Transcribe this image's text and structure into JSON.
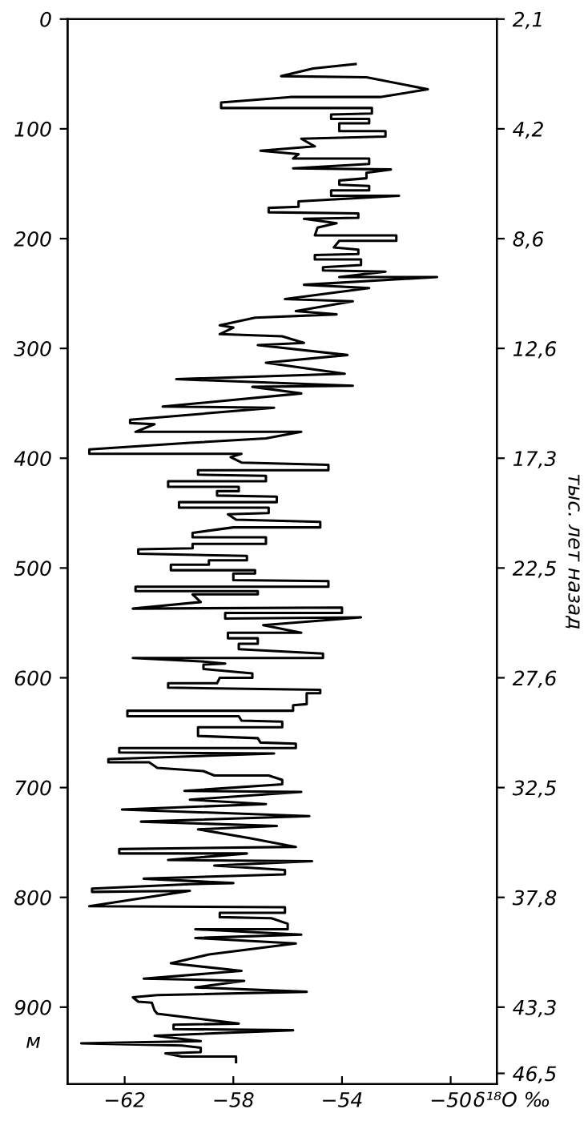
{
  "chart_data": {
    "type": "line",
    "xlabel": "δ¹⁸O ‰",
    "ylabel": "м",
    "y2label": "тыс. лет назад",
    "xlim": [
      -64.1,
      -48.3
    ],
    "xticks": [
      -62,
      -58,
      -54,
      -50
    ],
    "ylim": [
      970,
      0
    ],
    "yticks": [
      0,
      100,
      200,
      300,
      400,
      500,
      600,
      700,
      800,
      900
    ],
    "annotations": [
      "2,1",
      "4,2",
      "8,6",
      "12,6",
      "17,3",
      "22,5",
      "27,6",
      "32,5",
      "37,8",
      "43,3",
      "46,5"
    ],
    "series": [
      {
        "color": "#000000",
        "x": [
          -53.5,
          -55.06,
          -56.24,
          -53.1,
          -50.84,
          -52.6,
          -55.9,
          -58.45,
          -58.45,
          -52.9,
          -52.9,
          -54.4,
          -54.4,
          -53.0,
          -53.0,
          -54.1,
          -54.1,
          -52.4,
          -52.4,
          -55.5,
          -55.0,
          -57.0,
          -55.6,
          -55.8,
          -53.0,
          -53.0,
          -55.8,
          -52.2,
          -53.1,
          -53.1,
          -54.1,
          -54.1,
          -53.0,
          -53.0,
          -54.4,
          -54.4,
          -51.9,
          -55.6,
          -55.6,
          -56.7,
          -56.7,
          -53.4,
          -53.4,
          -55.4,
          -54.2,
          -54.9,
          -55.0,
          -52.0,
          -52.0,
          -54.1,
          -54.3,
          -53.4,
          -53.4,
          -55.0,
          -55.0,
          -53.3,
          -53.3,
          -54.7,
          -54.7,
          -52.4,
          -54.1,
          -50.5,
          -55.4,
          -53.0,
          -56.1,
          -53.6,
          -55.7,
          -54.2,
          -57.2,
          -58.5,
          -58.0,
          -58.5,
          -56.2,
          -55.4,
          -57.1,
          -53.8,
          -56.8,
          -53.9,
          -60.1,
          -53.6,
          -57.3,
          -55.5,
          -60.6,
          -56.5,
          -61.8,
          -61.8,
          -60.9,
          -61.6,
          -55.5,
          -56.8,
          -59.6,
          -63.3,
          -63.3,
          -57.7,
          -58.1,
          -57.7,
          -54.5,
          -54.5,
          -59.3,
          -59.3,
          -56.8,
          -56.8,
          -60.4,
          -60.4,
          -57.8,
          -57.8,
          -58.6,
          -58.6,
          -56.4,
          -56.4,
          -60.0,
          -60.0,
          -56.7,
          -56.7,
          -58.2,
          -57.9,
          -54.8,
          -54.8,
          -58.0,
          -59.5,
          -59.5,
          -56.8,
          -56.8,
          -59.5,
          -59.5,
          -61.5,
          -61.5,
          -57.5,
          -57.5,
          -58.9,
          -58.9,
          -60.3,
          -60.3,
          -57.2,
          -57.2,
          -58.0,
          -58.0,
          -54.5,
          -54.5,
          -61.6,
          -61.6,
          -57.1,
          -57.1,
          -59.5,
          -59.2,
          -61.7,
          -54.0,
          -54.0,
          -58.3,
          -58.3,
          -53.3,
          -56.9,
          -55.5,
          -58.2,
          -58.2,
          -57.1,
          -57.1,
          -57.8,
          -57.8,
          -54.7,
          -54.7,
          -61.7,
          -59.2,
          -58.3,
          -59.1,
          -59.1,
          -57.3,
          -57.3,
          -58.5,
          -58.6,
          -60.4,
          -60.4,
          -54.8,
          -54.8,
          -55.3,
          -55.3,
          -55.8,
          -55.8,
          -61.9,
          -61.9,
          -57.8,
          -57.7,
          -56.2,
          -56.2,
          -59.3,
          -59.3,
          -57.1,
          -57.0,
          -55.7,
          -55.7,
          -62.2,
          -62.2,
          -56.5,
          -62.6,
          -62.6,
          -61.1,
          -60.8,
          -59.1,
          -58.7,
          -56.7,
          -56.2,
          -56.2,
          -59.8,
          -55.5,
          -59.6,
          -56.8,
          -62.1,
          -55.2,
          -61.4,
          -56.4,
          -59.3,
          -57.4,
          -55.7,
          -62.2,
          -62.2,
          -57.5,
          -60.4,
          -55.1,
          -58.7,
          -56.1,
          -56.1,
          -61.3,
          -58.0,
          -59.6,
          -63.2,
          -63.2,
          -59.6,
          -63.3,
          -56.1,
          -56.1,
          -58.5,
          -58.5,
          -56.6,
          -56.0,
          -56.0,
          -59.4,
          -55.5,
          -59.4,
          -55.7,
          -58.9,
          -60.3,
          -57.7,
          -61.3,
          -57.6,
          -59.4,
          -55.3,
          -60.8,
          -61.7,
          -61.5,
          -61.0,
          -60.9,
          -60.8,
          -57.8,
          -60.2,
          -60.2,
          -55.8,
          -60.9,
          -59.2,
          -63.6,
          -59.9,
          -59.2,
          -59.2,
          -60.5,
          -59.9,
          -57.9,
          -57.9
        ],
        "values": [
          41,
          45,
          52,
          53,
          64,
          71,
          71,
          76,
          81,
          81,
          86,
          87,
          91,
          91,
          95,
          95,
          102,
          102,
          107,
          109,
          116,
          120,
          123,
          127,
          127,
          132,
          136,
          137,
          140,
          145,
          147,
          151,
          152,
          156,
          156,
          161,
          161,
          166,
          171,
          172,
          176,
          177,
          181,
          182,
          186,
          190,
          197,
          197,
          202,
          202,
          208,
          210,
          214,
          215,
          219,
          219,
          224,
          226,
          229,
          230,
          235,
          235,
          242,
          245,
          255,
          257,
          266,
          269,
          272,
          279,
          281,
          287,
          289,
          295,
          297,
          306,
          313,
          323,
          328,
          334,
          335,
          341,
          353,
          354,
          365,
          368,
          369,
          376,
          376,
          382,
          386,
          392,
          396,
          396,
          399,
          404,
          406,
          411,
          411,
          415,
          416,
          421,
          421,
          426,
          426,
          430,
          430,
          434,
          435,
          440,
          440,
          445,
          445,
          450,
          451,
          456,
          458,
          463,
          463,
          468,
          472,
          472,
          478,
          478,
          482,
          483,
          487,
          489,
          493,
          493,
          497,
          497,
          502,
          502,
          505,
          505,
          511,
          512,
          517,
          517,
          521,
          521,
          524,
          524,
          531,
          537,
          536,
          541,
          541,
          546,
          545,
          552,
          559,
          559,
          564,
          564,
          569,
          569,
          574,
          578,
          582,
          582,
          585,
          587,
          588,
          592,
          596,
          600,
          600,
          605,
          605,
          609,
          611,
          614,
          614,
          624,
          625,
          630,
          630,
          635,
          635,
          639,
          640,
          645,
          645,
          653,
          655,
          659,
          660,
          664,
          664,
          668,
          669,
          674,
          677,
          677,
          682,
          685,
          689,
          689,
          693,
          697,
          703,
          704,
          711,
          715,
          720,
          726,
          731,
          735,
          738,
          746,
          754,
          756,
          760,
          760,
          766,
          767,
          771,
          775,
          779,
          783,
          787,
          788,
          792,
          795,
          794,
          808,
          809,
          814,
          814,
          818,
          819,
          824,
          829,
          829,
          834,
          837,
          842,
          852,
          860,
          867,
          874,
          876,
          882,
          886,
          889,
          891,
          895,
          896,
          903,
          906,
          915,
          916,
          920,
          921,
          926,
          931,
          933,
          935,
          937,
          941,
          942,
          945,
          945,
          950
        ]
      }
    ]
  }
}
